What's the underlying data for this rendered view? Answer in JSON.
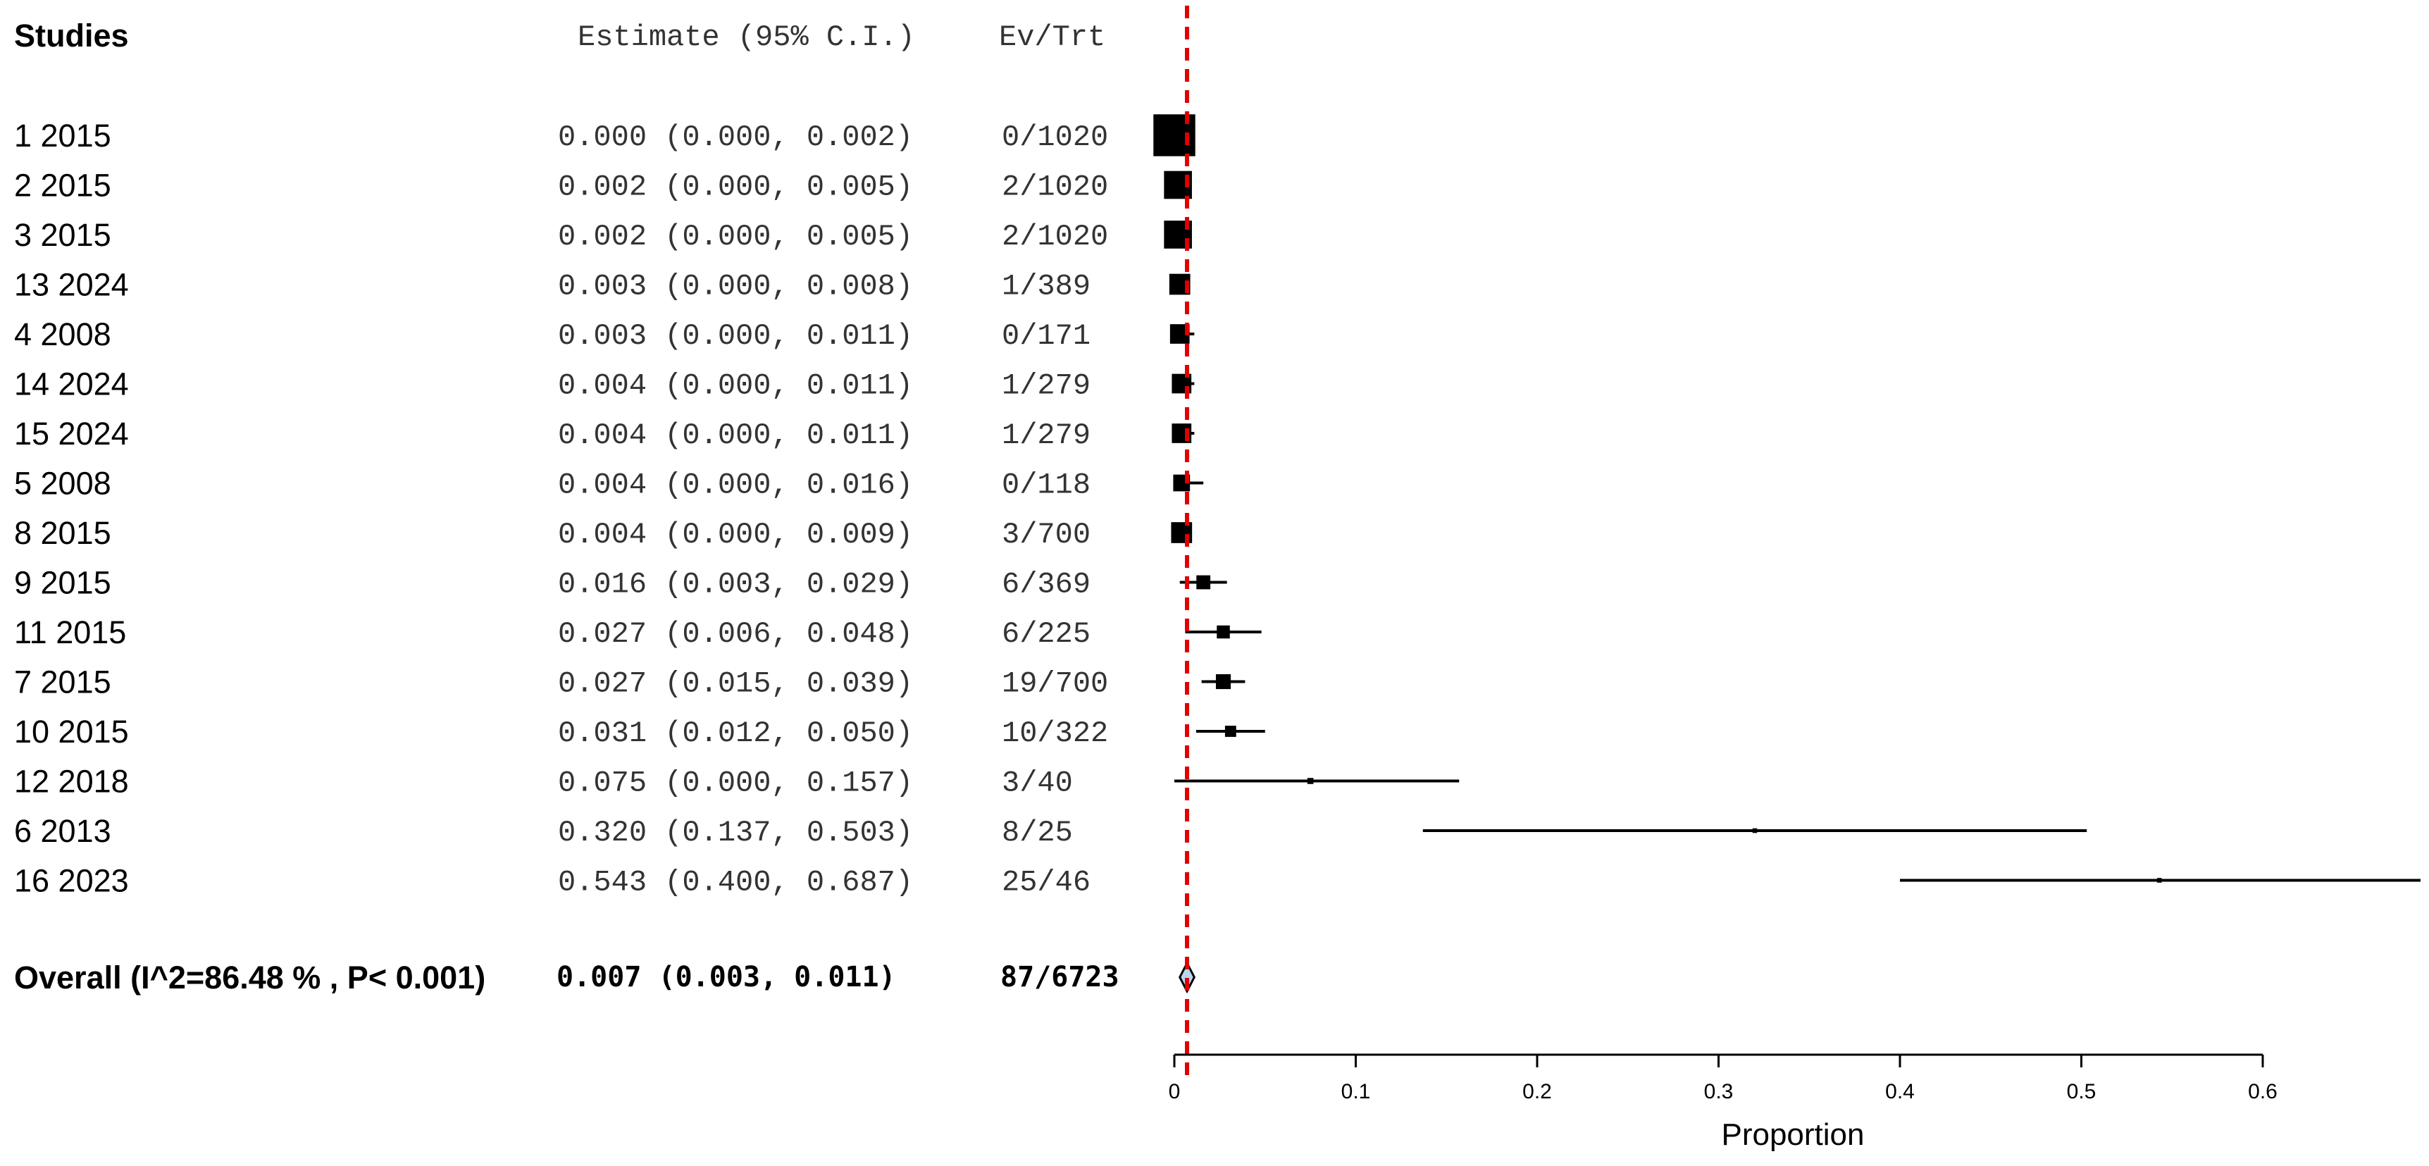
{
  "chart_data": {
    "type": "forest",
    "headers": {
      "studies": "Studies",
      "estimate": "Estimate (95% C.I.)",
      "evtrt": "Ev/Trt"
    },
    "studies": [
      {
        "label": "1 2015",
        "est": 0.0,
        "lo": 0.0,
        "hi": 0.002,
        "est_text": "0.000 (0.000, 0.002)",
        "ev_trt": "0/1020",
        "weight": 9.0
      },
      {
        "label": "2 2015",
        "est": 0.002,
        "lo": 0.0,
        "hi": 0.005,
        "est_text": "0.002 (0.000, 0.005)",
        "ev_trt": "2/1020",
        "weight": 6.0
      },
      {
        "label": "3 2015",
        "est": 0.002,
        "lo": 0.0,
        "hi": 0.005,
        "est_text": "0.002 (0.000, 0.005)",
        "ev_trt": "2/1020",
        "weight": 6.0
      },
      {
        "label": "13 2024",
        "est": 0.003,
        "lo": 0.0,
        "hi": 0.008,
        "est_text": "0.003 (0.000, 0.008)",
        "ev_trt": "1/389",
        "weight": 4.5
      },
      {
        "label": "4 2008",
        "est": 0.003,
        "lo": 0.0,
        "hi": 0.011,
        "est_text": "0.003 (0.000, 0.011)",
        "ev_trt": "0/171",
        "weight": 4.2
      },
      {
        "label": "14 2024",
        "est": 0.004,
        "lo": 0.0,
        "hi": 0.011,
        "est_text": "0.004 (0.000, 0.011)",
        "ev_trt": "1/279",
        "weight": 4.2
      },
      {
        "label": "15 2024",
        "est": 0.004,
        "lo": 0.0,
        "hi": 0.011,
        "est_text": "0.004 (0.000, 0.011)",
        "ev_trt": "1/279",
        "weight": 4.2
      },
      {
        "label": "5 2008",
        "est": 0.004,
        "lo": 0.0,
        "hi": 0.016,
        "est_text": "0.004 (0.000, 0.016)",
        "ev_trt": "0/118",
        "weight": 3.6
      },
      {
        "label": "8 2015",
        "est": 0.004,
        "lo": 0.0,
        "hi": 0.009,
        "est_text": "0.004 (0.000, 0.009)",
        "ev_trt": "3/700",
        "weight": 4.5
      },
      {
        "label": "9 2015",
        "est": 0.016,
        "lo": 0.003,
        "hi": 0.029,
        "est_text": "0.016 (0.003, 0.029)",
        "ev_trt": "6/369",
        "weight": 3.0
      },
      {
        "label": "11 2015",
        "est": 0.027,
        "lo": 0.006,
        "hi": 0.048,
        "est_text": "0.027 (0.006, 0.048)",
        "ev_trt": "6/225",
        "weight": 2.8
      },
      {
        "label": "7 2015",
        "est": 0.027,
        "lo": 0.015,
        "hi": 0.039,
        "est_text": "0.027 (0.015, 0.039)",
        "ev_trt": "19/700",
        "weight": 3.2
      },
      {
        "label": "10 2015",
        "est": 0.031,
        "lo": 0.012,
        "hi": 0.05,
        "est_text": "0.031 (0.012, 0.050)",
        "ev_trt": "10/322",
        "weight": 2.4
      },
      {
        "label": "12 2018",
        "est": 0.075,
        "lo": 0.0,
        "hi": 0.157,
        "est_text": "0.075 (0.000, 0.157)",
        "ev_trt": "3/40",
        "weight": 1.3
      },
      {
        "label": "6 2013",
        "est": 0.32,
        "lo": 0.137,
        "hi": 0.503,
        "est_text": "0.320 (0.137, 0.503)",
        "ev_trt": "8/25",
        "weight": 1.0
      },
      {
        "label": "16 2023",
        "est": 0.543,
        "lo": 0.4,
        "hi": 0.687,
        "est_text": "0.543 (0.400, 0.687)",
        "ev_trt": "25/46",
        "weight": 1.0
      }
    ],
    "overall": {
      "label": "Overall (I^2=86.48 % , P< 0.001)",
      "est": 0.007,
      "lo": 0.003,
      "hi": 0.011,
      "est_text": "0.007 (0.003, 0.011)",
      "ev_trt": "87/6723"
    },
    "reference_line": {
      "value": 0.007,
      "style": "dashed",
      "color": "#e00000"
    },
    "diamond_fill": "#b7d7f0",
    "xlabel": "Proportion",
    "xlim": [
      0,
      0.6
    ],
    "xticks": [
      0,
      0.1,
      0.2,
      0.3,
      0.4,
      0.5,
      0.6
    ],
    "tick_labels": [
      "0",
      "0.1",
      "0.2",
      "0.3",
      "0.4",
      "0.5",
      "0.6"
    ]
  }
}
